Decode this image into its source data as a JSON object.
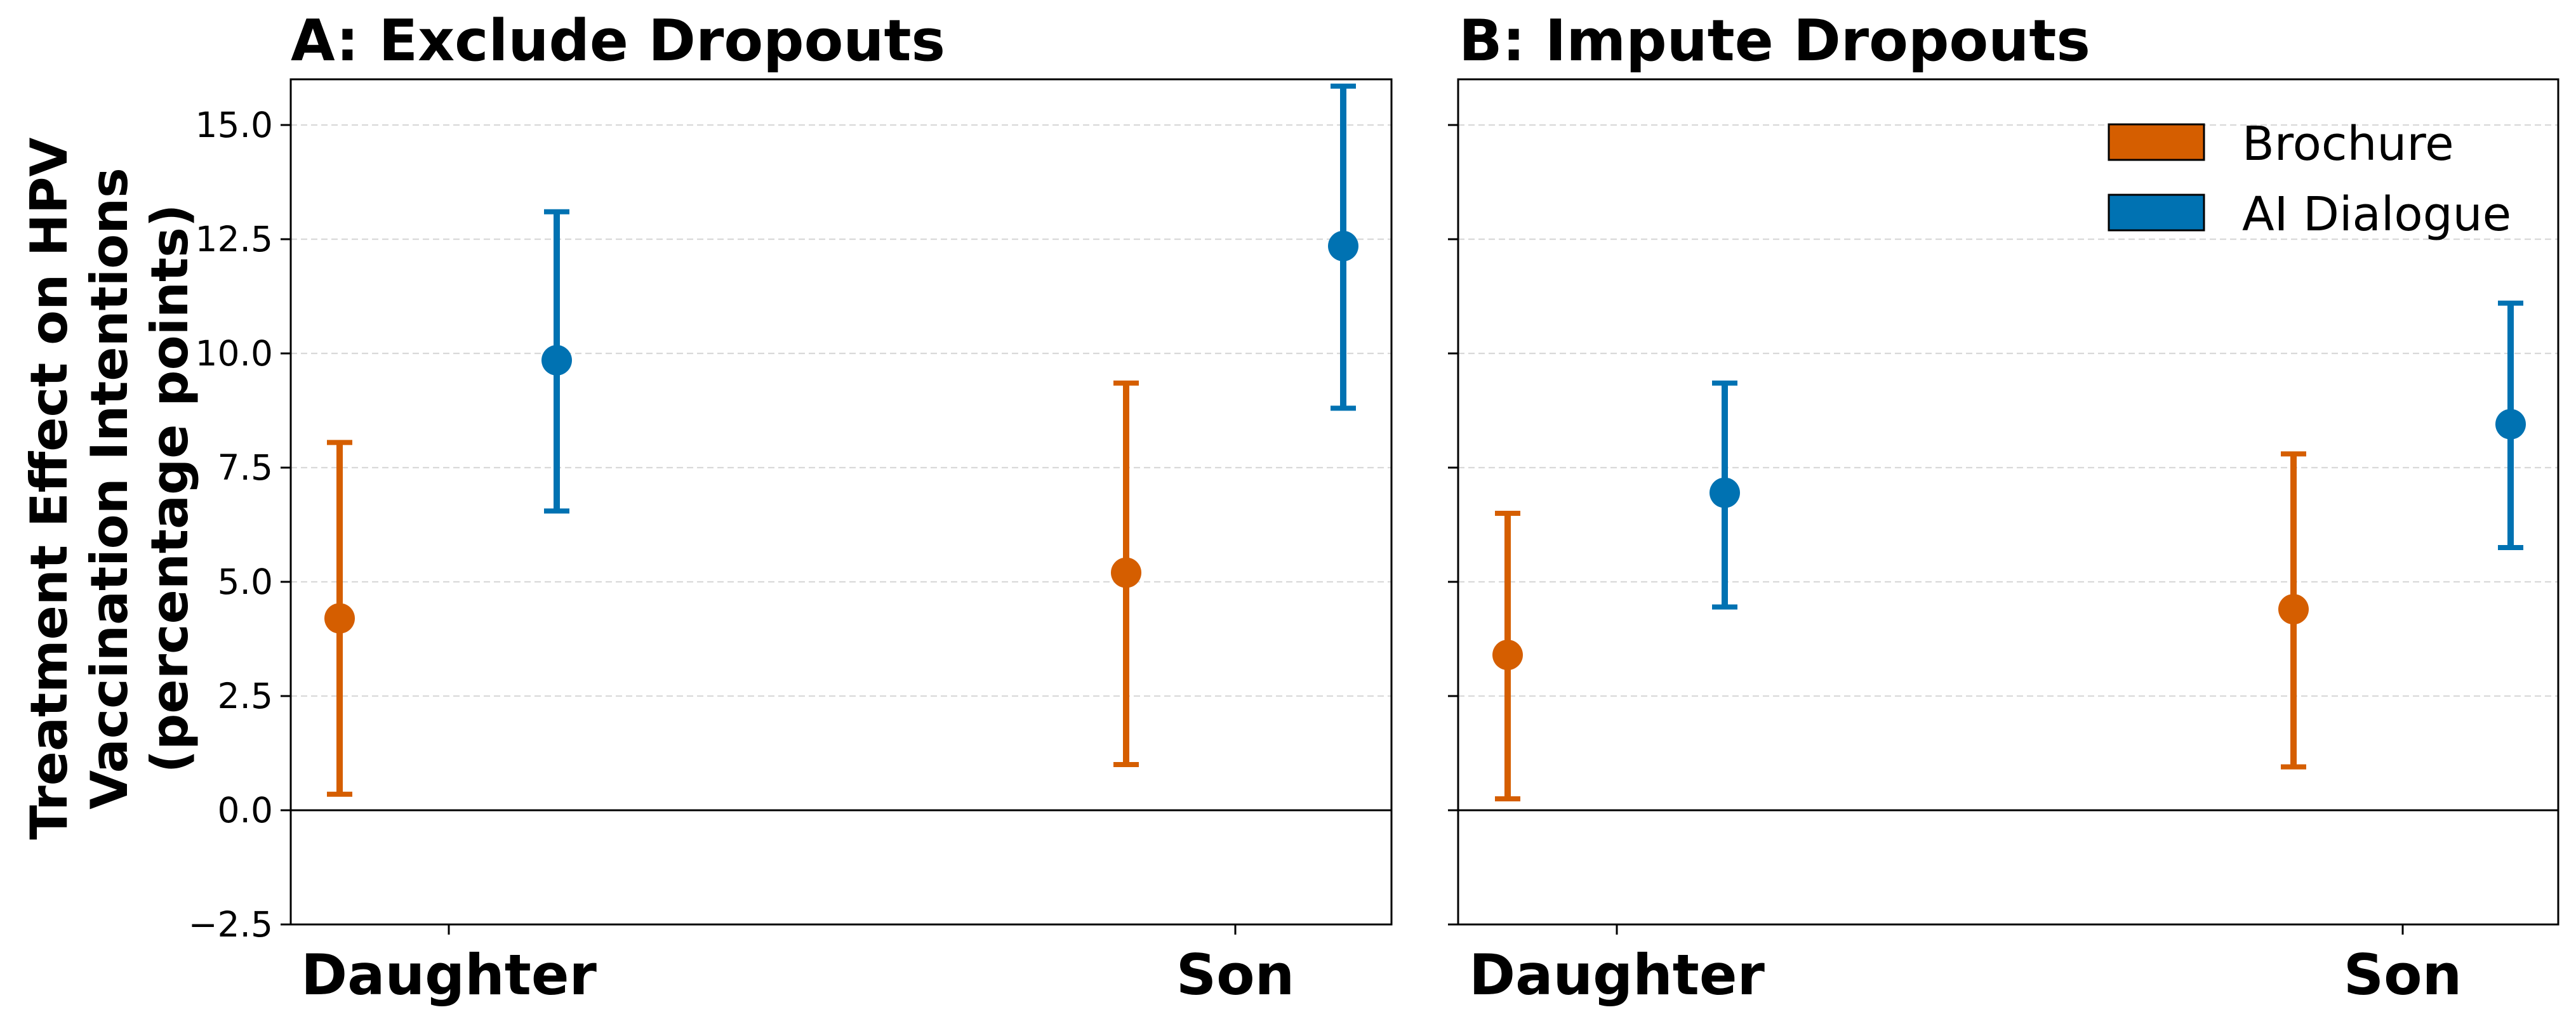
{
  "colors": {
    "brochure": "#d55e00",
    "ai_dialogue": "#0072b2"
  },
  "y_axis": {
    "label_lines": [
      "Treatment Effect on HPV",
      "Vaccination Intentions",
      "(percentage points)"
    ],
    "ylim": [
      -2.5,
      16.0
    ],
    "ticks": [
      -2.5,
      0.0,
      2.5,
      5.0,
      7.5,
      10.0,
      12.5,
      15.0
    ],
    "tick_labels": [
      "−2.5",
      "0.0",
      "2.5",
      "5.0",
      "7.5",
      "10.0",
      "12.5",
      "15.0"
    ],
    "grid": "dashed horizontal",
    "reference_line": 0
  },
  "legend": {
    "placement": "top-right",
    "entries": [
      "Brochure",
      "AI Dialogue"
    ]
  },
  "chart_data": [
    {
      "type": "scatter",
      "title": "A: Exclude Dropouts",
      "categories": [
        "Daughter",
        "Son"
      ],
      "series": [
        {
          "name": "Brochure",
          "values": [
            4.2,
            5.2
          ],
          "ci_low": [
            0.35,
            1.0
          ],
          "ci_high": [
            8.05,
            9.35
          ]
        },
        {
          "name": "AI Dialogue",
          "values": [
            9.85,
            12.35
          ],
          "ci_low": [
            6.55,
            8.8
          ],
          "ci_high": [
            13.1,
            15.85
          ]
        }
      ]
    },
    {
      "type": "scatter",
      "title": "B: Impute Dropouts",
      "categories": [
        "Daughter",
        "Son"
      ],
      "series": [
        {
          "name": "Brochure",
          "values": [
            3.4,
            4.4
          ],
          "ci_low": [
            0.25,
            0.95
          ],
          "ci_high": [
            6.5,
            7.8
          ]
        },
        {
          "name": "AI Dialogue",
          "values": [
            6.95,
            8.45
          ],
          "ci_low": [
            4.45,
            5.75
          ],
          "ci_high": [
            9.35,
            11.1
          ]
        }
      ]
    }
  ]
}
